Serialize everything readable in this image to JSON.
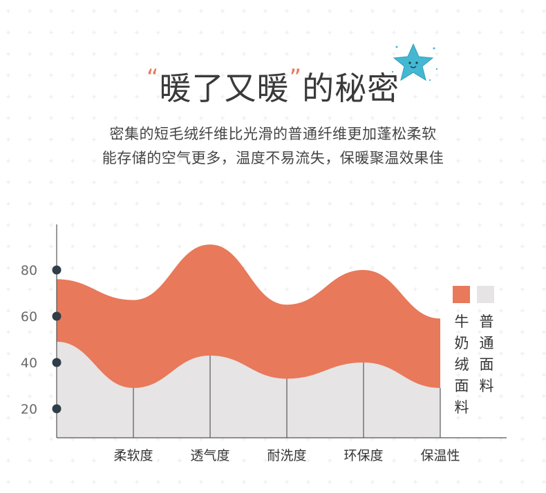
{
  "header": {
    "title_main": "暖了又暖",
    "quote_open": "“",
    "quote_close": "”",
    "title_suffix": "的秘密",
    "subtitle_line1": "密集的短毛绒纤维比光滑的普通纤维更加蓬松柔软",
    "subtitle_line2": "能存储的空气更多，温度不易流失，保暖聚温效果佳"
  },
  "colors": {
    "accent": "#e8795a",
    "secondary": "#e6e4e4",
    "dot": "#2f3e48",
    "star": "#44b8d2"
  },
  "chart_data": {
    "type": "area",
    "categories": [
      "柔软度",
      "透气度",
      "耐洗度",
      "环保度",
      "保温性"
    ],
    "y_ticks": [
      20,
      40,
      60,
      80
    ],
    "ylim": [
      10,
      90
    ],
    "series": [
      {
        "name": "牛奶绒面料",
        "color": "#e8795a",
        "x": [
          0,
          1,
          2,
          3,
          4,
          5
        ],
        "values": [
          76,
          67,
          91,
          65,
          80,
          59
        ]
      },
      {
        "name": "普通面料",
        "color": "#e6e4e4",
        "x": [
          0,
          1,
          2,
          3,
          4,
          5
        ],
        "values": [
          49,
          29,
          43,
          33,
          40,
          29
        ]
      }
    ],
    "legend": {
      "position": "right"
    }
  }
}
